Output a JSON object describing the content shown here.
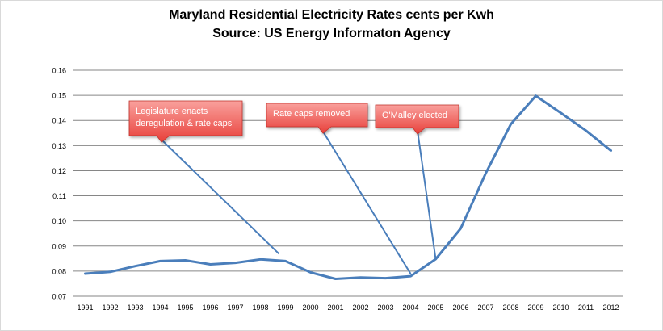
{
  "chart_data": {
    "type": "line",
    "title": "Maryland Residential Electricity Rates cents per Kwh",
    "subtitle": "Source: US Energy Informaton Agency",
    "xlabel": "",
    "ylabel": "",
    "ylim": [
      0.07,
      0.16
    ],
    "yticks": [
      "0.07",
      "0.08",
      "0.09",
      "0.10",
      "0.11",
      "0.12",
      "0.13",
      "0.14",
      "0.15",
      "0.16"
    ],
    "grid": true,
    "legend": "none",
    "categories": [
      "1991",
      "1992",
      "1993",
      "1994",
      "1995",
      "1996",
      "1997",
      "1998",
      "1999",
      "2000",
      "2001",
      "2002",
      "2003",
      "2004",
      "2005",
      "2006",
      "2007",
      "2008",
      "2009",
      "2010",
      "2011",
      "2012"
    ],
    "series": [
      {
        "values": [
          0.079,
          0.0797,
          0.082,
          0.084,
          0.0843,
          0.0827,
          0.0833,
          0.0847,
          0.084,
          0.0795,
          0.0769,
          0.0775,
          0.0772,
          0.078,
          0.0848,
          0.097,
          0.119,
          0.1385,
          0.1498,
          0.143,
          0.136,
          0.128
        ]
      }
    ],
    "annotations": [
      {
        "lines": [
          "Legislature enacts",
          "deregulation & rate caps"
        ],
        "target": "1999"
      },
      {
        "lines": [
          "Rate caps removed"
        ],
        "target": "2004"
      },
      {
        "lines": [
          "O'Malley elected"
        ],
        "target": "2005"
      }
    ]
  },
  "colors": {
    "line": "#4a7ebb",
    "grid": "#868686",
    "callout_fill": "#e8403a",
    "callout_light": "#f9a09c"
  }
}
